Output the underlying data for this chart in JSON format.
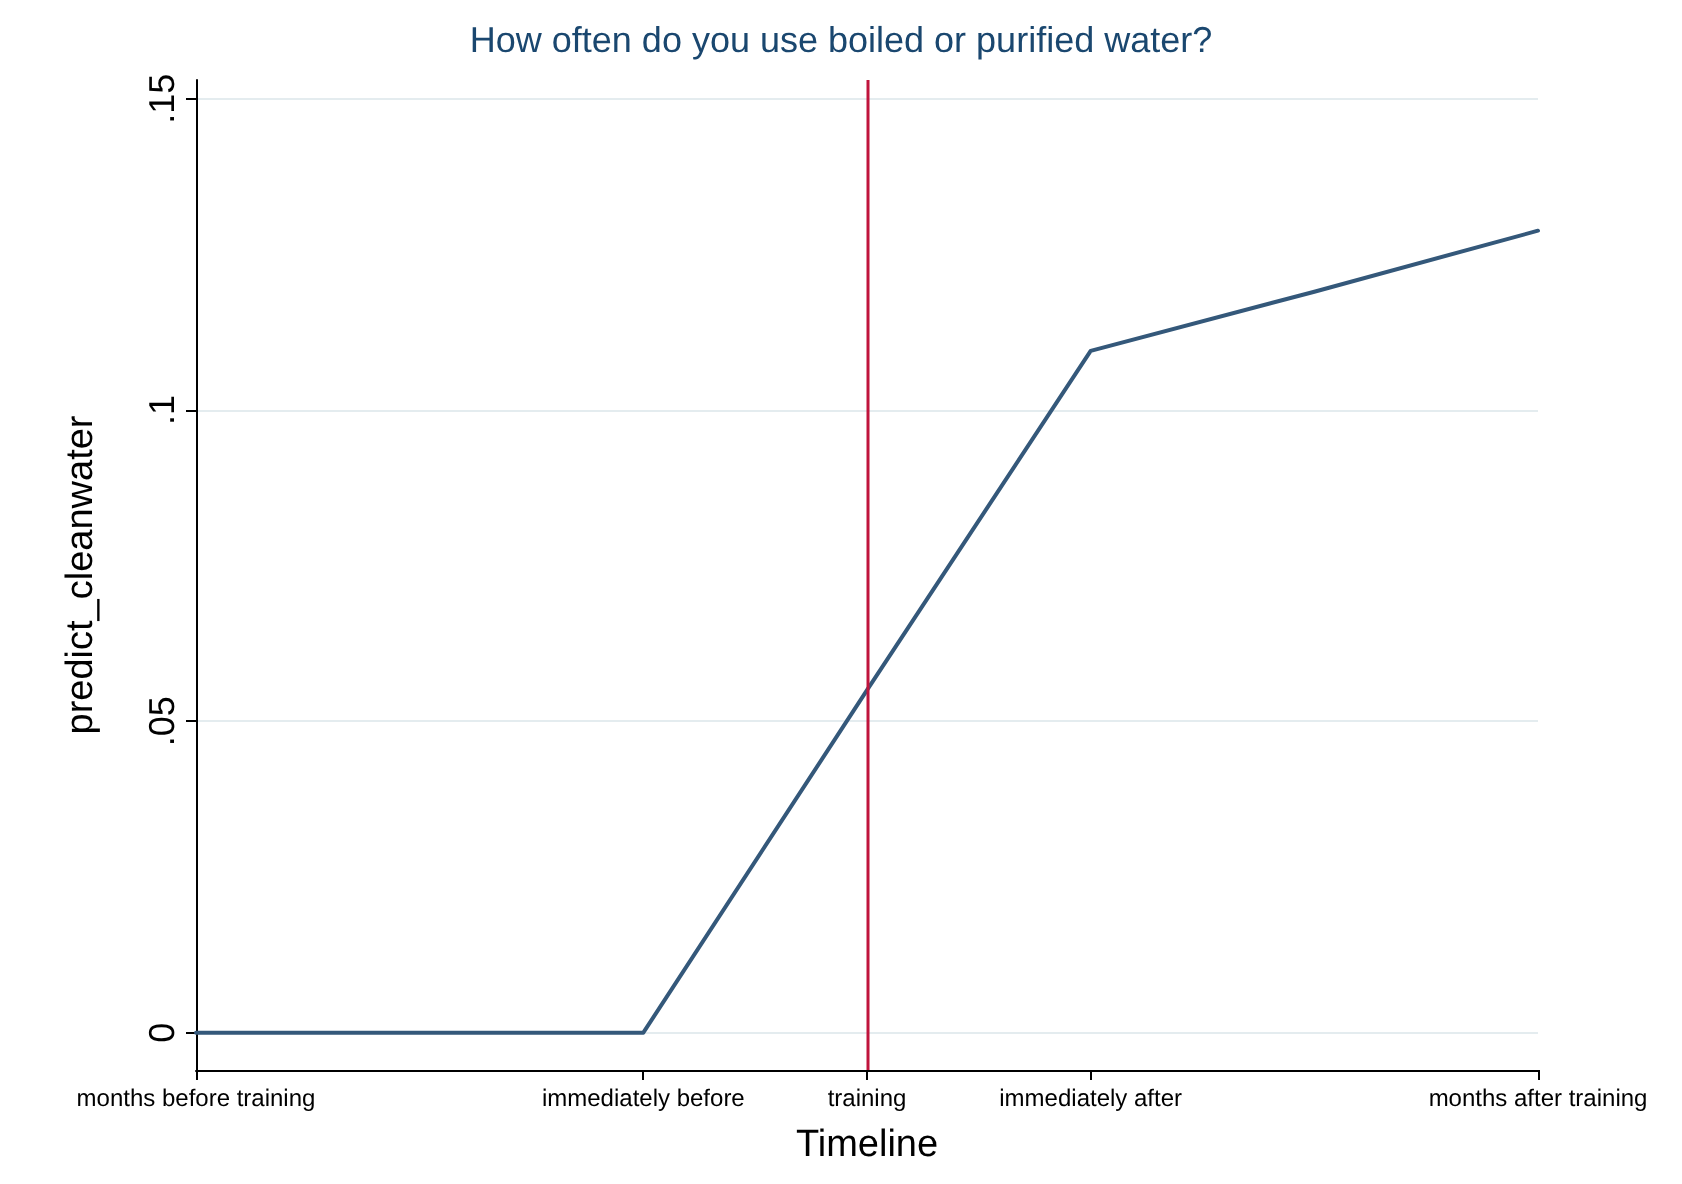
{
  "chart_data": {
    "type": "line",
    "title": "How often do you use boiled or purified water?",
    "xlabel": "Timeline",
    "ylabel": "predict_cleanwater",
    "categories": [
      "months before training",
      null,
      "immediately before",
      "training",
      "immediately after",
      null,
      "months after training"
    ],
    "series": [
      {
        "color": "#34587a",
        "values": [
          0,
          0,
          0,
          0.055,
          0.1095,
          0.119,
          0.1288
        ]
      }
    ],
    "ylim": [
      -0.006,
      0.153
    ],
    "yticks": [
      {
        "value": 0,
        "label": "0"
      },
      {
        "value": 0.05,
        "label": ".05"
      },
      {
        "value": 0.1,
        "label": ".1"
      },
      {
        "value": 0.15,
        "label": ".15"
      }
    ],
    "ref_lines": [
      {
        "axis": "x",
        "value": "training",
        "color": "#c0143c"
      }
    ],
    "grid": "y",
    "marker": "none",
    "line_style": "solid"
  }
}
